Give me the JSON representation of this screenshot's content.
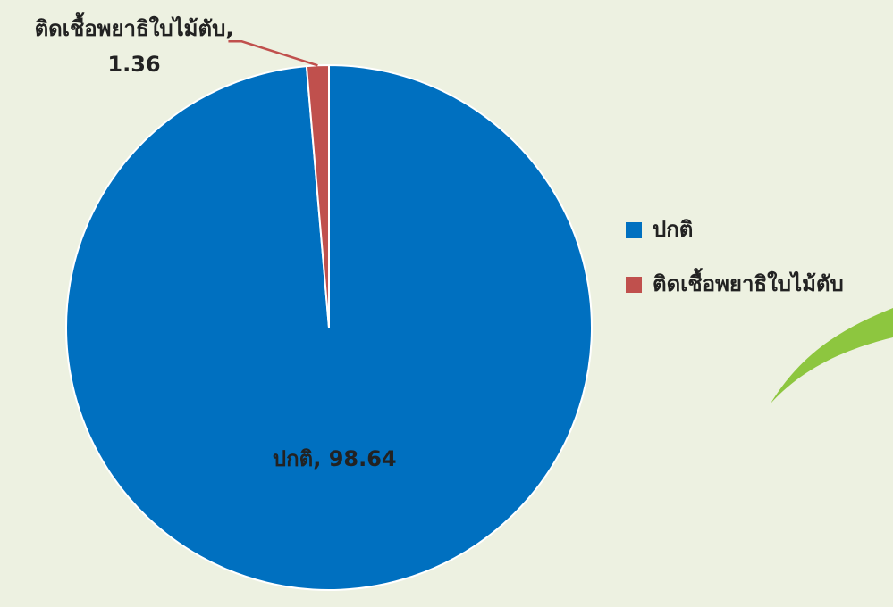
{
  "chart_data": {
    "type": "pie",
    "categories": [
      "ปกติ",
      "ติดเชื้อพยาธิใบไม้ตับ"
    ],
    "values": [
      98.64,
      1.36
    ],
    "value_labels": [
      "ปกติ, 98.64",
      "ติดเชื้อพยาธิใบไม้ตับ, 1.36"
    ],
    "colors": [
      "#0070c0",
      "#c0504d"
    ],
    "legend": "right"
  }
}
